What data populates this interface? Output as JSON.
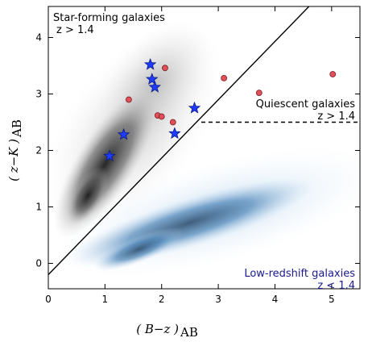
{
  "chart_data": {
    "type": "scatter",
    "title": "",
    "xlabel": "( B−z )",
    "xlabel_sub": "AB",
    "ylabel": "( z−K )",
    "ylabel_sub": "AB",
    "xlim": [
      0,
      5.5
    ],
    "ylim": [
      -0.45,
      4.55
    ],
    "xticks": [
      0,
      1,
      2,
      3,
      4,
      5
    ],
    "yticks": [
      0,
      1,
      2,
      3,
      4
    ],
    "grid": false,
    "annotations": {
      "star_forming": {
        "line1": "Star-forming galaxies",
        "line2": "z > 1.4"
      },
      "quiescent": {
        "line1": "Quiescent galaxies",
        "line2": "z > 1.4"
      },
      "low_z": {
        "line1": "Low-redshift galaxies",
        "line2": "z < 1.4",
        "color": "#1a1a8c"
      }
    },
    "colors": {
      "grey_density": "#3a3a3a",
      "blue_density": "#2f5f8f",
      "star_marker": "#1f3bff",
      "circle_marker": "#e0505a"
    },
    "boundary_lines": [
      {
        "style": "solid",
        "x": [
          0.0,
          4.6
        ],
        "y": [
          -0.2,
          4.55
        ]
      },
      {
        "style": "dashed",
        "x": [
          2.7,
          5.5
        ],
        "y": [
          2.5,
          2.5
        ]
      }
    ],
    "series": [
      {
        "marker": "star",
        "x": [
          1.8,
          1.83,
          1.88,
          2.58,
          2.23,
          1.33,
          1.08
        ],
        "y": [
          3.52,
          3.26,
          3.12,
          2.75,
          2.3,
          2.28,
          1.9
        ]
      },
      {
        "marker": "circle",
        "x": [
          2.06,
          3.1,
          3.72,
          5.02,
          1.42,
          1.93,
          2.2,
          2.0
        ],
        "y": [
          3.46,
          3.28,
          3.02,
          3.35,
          2.9,
          2.62,
          2.5,
          2.6
        ]
      }
    ]
  }
}
